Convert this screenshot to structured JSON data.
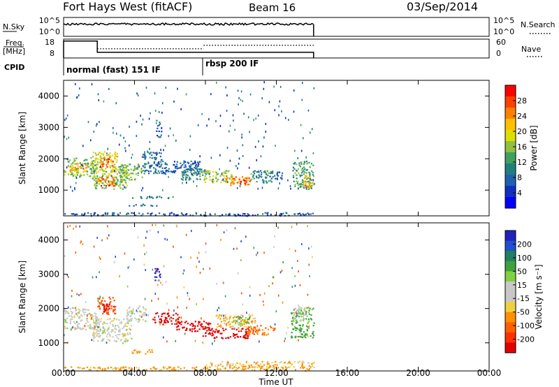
{
  "header": {
    "station": "Fort Hays West (fitACF)",
    "beam": "Beam 16",
    "date": "03/Sep/2014"
  },
  "panels": {
    "nsky": {
      "label": "N.Sky",
      "left_ticks": [
        "10^5",
        "10^0"
      ],
      "right_ticks": [
        "10^5",
        "10^0"
      ],
      "right_label": "N.Search"
    },
    "freq": {
      "label_top": "Freq.",
      "label_bottom": "[MHz]",
      "left_ticks": [
        "18",
        "8"
      ],
      "right_ticks": [
        "60",
        "0"
      ],
      "right_label": "Nave"
    },
    "cpid": {
      "label": "CPID",
      "segments": [
        {
          "start": "00:00",
          "text": "normal (fast) 151 IF"
        },
        {
          "start": "07:55",
          "text": "rbsp 200 IF"
        }
      ]
    }
  },
  "power_panel": {
    "ylabel": "Slant Range [km]",
    "cbar_label": "Power [dB]",
    "cbar_ticks": [
      "28",
      "24",
      "20",
      "16",
      "12",
      "8",
      "4"
    ],
    "cbar_colors": [
      "#ff0000",
      "#ff4000",
      "#ff8000",
      "#ffc000",
      "#dede00",
      "#90c040",
      "#40a060",
      "#208080",
      "#2060b0",
      "#1030c0",
      "#0000ff"
    ]
  },
  "velocity_panel": {
    "ylabel": "Slant Range [km]",
    "cbar_label": "Velocity [m s⁻¹]",
    "cbar_ticks": [
      "200",
      "100",
      "50",
      "15",
      "-15",
      "-50",
      "-100",
      "-200"
    ],
    "cbar_colors": [
      "#2020c0",
      "#2050d0",
      "#208060",
      "#40a040",
      "#80d040",
      "#c8c8c8",
      "#c8c8c8",
      "#f0d040",
      "#ff9000",
      "#ff6000",
      "#ff3000",
      "#e00000"
    ]
  },
  "x_axis": {
    "label": "Time UT",
    "ticks": [
      "00:00",
      "04:00",
      "08:00",
      "12:00",
      "16:00",
      "20:00",
      "00:00"
    ]
  },
  "chart_data": {
    "type": "heatmap",
    "title": "Fort Hays West (fitACF)",
    "x_range_hours": [
      0,
      24
    ],
    "data_end_hour": 14.1,
    "y_range_km": [
      180,
      4500
    ],
    "y_ticks": [
      1000,
      2000,
      3000,
      4000
    ],
    "xlabel": "Time UT",
    "ylabel": "Slant Range [km]",
    "power_blobs": [
      {
        "t0": 0.0,
        "t1": 1.9,
        "r0": 1450,
        "r1": 2050,
        "v": 14
      },
      {
        "t0": 0.3,
        "t1": 1.3,
        "r0": 1600,
        "r1": 1900,
        "v": 22
      },
      {
        "t0": 1.6,
        "t1": 3.0,
        "r0": 1600,
        "r1": 2250,
        "v": 18
      },
      {
        "t0": 2.0,
        "t1": 2.8,
        "r0": 1750,
        "r1": 2100,
        "v": 26
      },
      {
        "t0": 1.6,
        "t1": 3.6,
        "r0": 1050,
        "r1": 1700,
        "v": 16
      },
      {
        "t0": 1.9,
        "t1": 2.9,
        "r0": 1150,
        "r1": 1450,
        "v": 26
      },
      {
        "t0": 3.0,
        "t1": 4.4,
        "r0": 1350,
        "r1": 1850,
        "v": 14
      },
      {
        "t0": 4.4,
        "t1": 5.5,
        "r0": 1550,
        "r1": 2250,
        "v": 8
      },
      {
        "t0": 5.2,
        "t1": 5.5,
        "r0": 2700,
        "r1": 3250,
        "v": 6
      },
      {
        "t0": 5.5,
        "t1": 7.8,
        "r0": 1500,
        "r1": 1950,
        "v": 6
      },
      {
        "t0": 6.6,
        "t1": 8.0,
        "r0": 1350,
        "r1": 1700,
        "v": 10
      },
      {
        "t0": 7.8,
        "t1": 9.5,
        "r0": 1250,
        "r1": 1650,
        "v": 16
      },
      {
        "t0": 9.0,
        "t1": 10.5,
        "r0": 1150,
        "r1": 1450,
        "v": 24
      },
      {
        "t0": 9.7,
        "t1": 10.3,
        "r0": 1200,
        "r1": 1350,
        "v": 28
      },
      {
        "t0": 10.5,
        "t1": 11.8,
        "r0": 1250,
        "r1": 1650,
        "v": 10
      },
      {
        "t0": 11.5,
        "t1": 12.3,
        "r0": 1350,
        "r1": 1600,
        "v": 6
      },
      {
        "t0": 12.9,
        "t1": 14.1,
        "r0": 1050,
        "r1": 1950,
        "v": 12
      },
      {
        "t0": 13.5,
        "t1": 14.1,
        "r0": 1100,
        "r1": 1500,
        "v": 22
      },
      {
        "t0": 0.0,
        "t1": 14.1,
        "r0": 200,
        "r1": 300,
        "v": 5
      },
      {
        "t0": 3.8,
        "t1": 6.2,
        "r0": 750,
        "r1": 820,
        "v": 8
      },
      {
        "t0": 3.6,
        "t1": 5.3,
        "r0": 520,
        "r1": 580,
        "v": 6
      }
    ],
    "velocity_blobs": [
      {
        "t0": 0.0,
        "t1": 1.9,
        "r0": 1400,
        "r1": 2050,
        "v": 0
      },
      {
        "t0": 1.6,
        "t1": 3.8,
        "r0": 1050,
        "r1": 1750,
        "v": 0
      },
      {
        "t0": 3.5,
        "t1": 4.6,
        "r0": 1600,
        "r1": 2100,
        "v": 0
      },
      {
        "t0": 1.9,
        "t1": 2.9,
        "r0": 1850,
        "r1": 2350,
        "v": -120
      },
      {
        "t0": 2.2,
        "t1": 2.8,
        "r0": 1900,
        "r1": 2150,
        "v": -250
      },
      {
        "t0": 5.1,
        "t1": 5.5,
        "r0": 2800,
        "r1": 3200,
        "v": 220
      },
      {
        "t0": 5.0,
        "t1": 6.5,
        "r0": 1550,
        "r1": 1900,
        "v": -250
      },
      {
        "t0": 6.3,
        "t1": 8.3,
        "r0": 1350,
        "r1": 1650,
        "v": -220
      },
      {
        "t0": 7.8,
        "t1": 10.5,
        "r0": 1150,
        "r1": 1450,
        "v": -250
      },
      {
        "t0": 8.5,
        "t1": 10.8,
        "r0": 1450,
        "r1": 1850,
        "v": -30
      },
      {
        "t0": 10.3,
        "t1": 11.9,
        "r0": 1250,
        "r1": 1550,
        "v": -70
      },
      {
        "t0": 9.5,
        "t1": 10.5,
        "r0": 1550,
        "r1": 1800,
        "v": 30
      },
      {
        "t0": 12.8,
        "t1": 14.1,
        "r0": 1150,
        "r1": 2050,
        "v": 40
      },
      {
        "t0": 12.9,
        "t1": 13.6,
        "r0": 1650,
        "r1": 2050,
        "v": 0
      },
      {
        "t0": 3.7,
        "t1": 5.0,
        "r0": 700,
        "r1": 820,
        "v": -40
      },
      {
        "t0": 0.0,
        "t1": 14.1,
        "r0": 200,
        "r1": 320,
        "v": -40
      },
      {
        "t0": 8.0,
        "t1": 14.1,
        "r0": 300,
        "r1": 480,
        "v": -30
      }
    ],
    "nsky_level": 0.65,
    "freq_initial_mhz": 17,
    "freq_main_mhz": 11,
    "freq_switch_hour": 1.9,
    "nave_level": 0.6
  }
}
